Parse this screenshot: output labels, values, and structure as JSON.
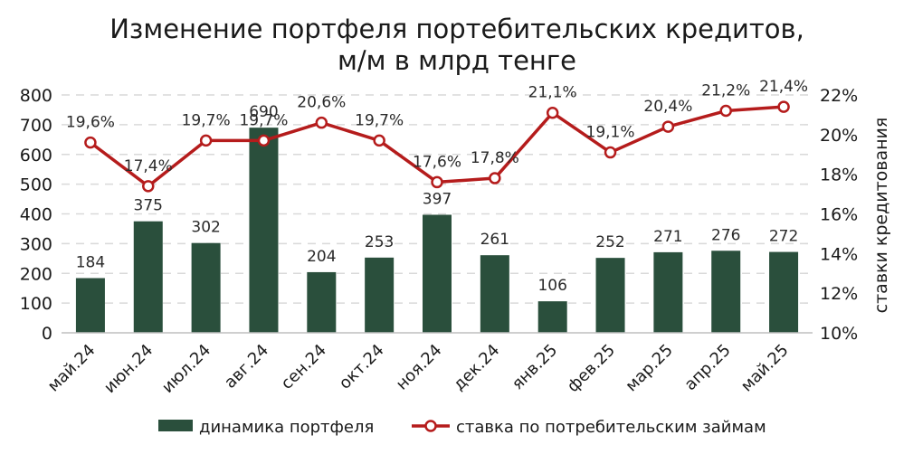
{
  "chart_data": {
    "type": "bar+line",
    "title_lines": [
      "Изменение портфеля портебительских кредитов,",
      "м/м в млрд тенге"
    ],
    "categories": [
      "май.24",
      "июн.24",
      "июл.24",
      "авг.24",
      "сен.24",
      "окт.24",
      "ноя.24",
      "дек.24",
      "янв.25",
      "фев.25",
      "мар.25",
      "апр.25",
      "май.25"
    ],
    "series": [
      {
        "name": "динамика портфеля",
        "type": "bar",
        "axis": "left",
        "color": "#2a4f3c",
        "values": [
          184,
          375,
          302,
          690,
          204,
          253,
          397,
          261,
          106,
          252,
          271,
          276,
          272
        ],
        "labels": [
          "184",
          "375",
          "302",
          "690",
          "204",
          "253",
          "397",
          "261",
          "106",
          "252",
          "271",
          "276",
          "272"
        ]
      },
      {
        "name": "ставка по потребительским займам",
        "type": "line",
        "axis": "right",
        "color": "#b51c1c",
        "values": [
          19.6,
          17.4,
          19.7,
          19.7,
          20.6,
          19.7,
          17.6,
          17.8,
          21.1,
          19.1,
          20.4,
          21.2,
          21.4
        ],
        "labels": [
          "19,6%",
          "17,4%",
          "19,7%",
          "19,7%",
          "20,6%",
          "19,7%",
          "17,6%",
          "17,8%",
          "21,1%",
          "19,1%",
          "20,4%",
          "21,2%",
          "21,4%"
        ]
      }
    ],
    "y_left": {
      "min": 0,
      "max": 800,
      "ticks": [
        "0",
        "100",
        "200",
        "300",
        "400",
        "500",
        "600",
        "700",
        "800"
      ]
    },
    "y_right": {
      "min": 10,
      "max": 22,
      "ticks": [
        "10%",
        "12%",
        "14%",
        "16%",
        "18%",
        "20%",
        "22%"
      ],
      "label": "ставки кредитования"
    },
    "legend_position": "bottom",
    "grid": true
  }
}
